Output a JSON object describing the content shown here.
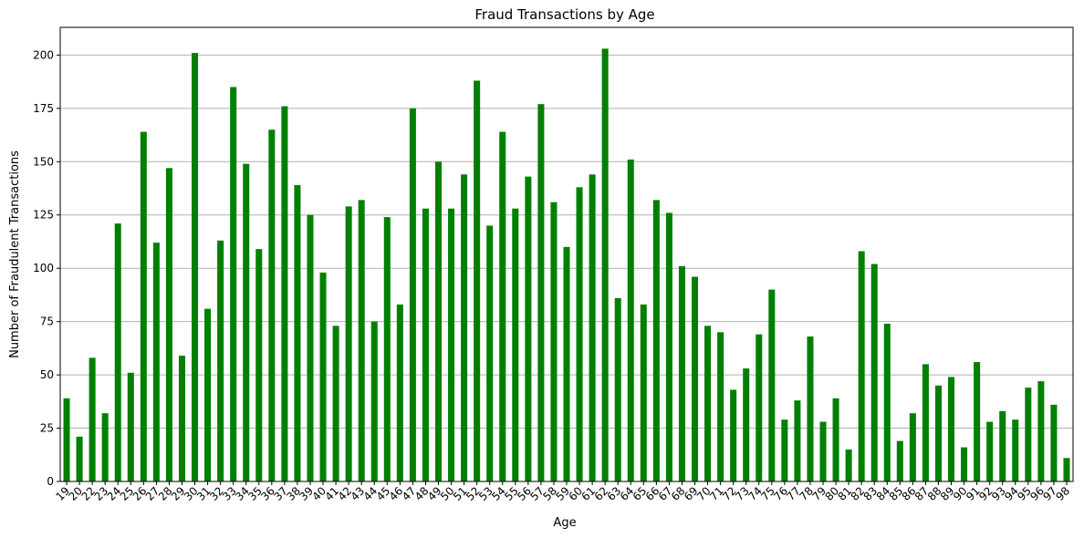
{
  "chart_data": {
    "type": "bar",
    "title": "Fraud Transactions by Age",
    "xlabel": "Age",
    "ylabel": "Number of Fraudulent Transactions",
    "ylim": [
      0,
      213
    ],
    "yticks": [
      0,
      25,
      50,
      75,
      100,
      125,
      150,
      175,
      200
    ],
    "grid": "y",
    "bar_color": "#008000",
    "categories": [
      "19",
      "20",
      "22",
      "23",
      "24",
      "25",
      "26",
      "27",
      "28",
      "29",
      "30",
      "31",
      "32",
      "33",
      "34",
      "35",
      "36",
      "37",
      "38",
      "39",
      "40",
      "41",
      "42",
      "43",
      "44",
      "45",
      "46",
      "47",
      "48",
      "49",
      "50",
      "51",
      "52",
      "53",
      "54",
      "55",
      "56",
      "57",
      "58",
      "59",
      "60",
      "61",
      "62",
      "63",
      "64",
      "65",
      "66",
      "67",
      "68",
      "69",
      "70",
      "71",
      "72",
      "73",
      "74",
      "75",
      "76",
      "77",
      "78",
      "79",
      "80",
      "81",
      "82",
      "83",
      "84",
      "85",
      "86",
      "87",
      "88",
      "89",
      "90",
      "91",
      "92",
      "93",
      "94",
      "95",
      "96",
      "97",
      "98"
    ],
    "values": [
      39,
      21,
      58,
      32,
      121,
      51,
      164,
      112,
      147,
      59,
      201,
      81,
      113,
      185,
      149,
      109,
      165,
      176,
      139,
      125,
      98,
      73,
      129,
      132,
      75,
      124,
      83,
      175,
      128,
      150,
      128,
      144,
      188,
      120,
      164,
      128,
      143,
      177,
      131,
      110,
      138,
      144,
      203,
      86,
      151,
      83,
      132,
      126,
      101,
      96,
      73,
      70,
      43,
      53,
      69,
      90,
      29,
      38,
      68,
      28,
      39,
      15,
      108,
      102,
      74,
      19,
      32,
      55,
      45,
      49,
      16,
      56,
      28,
      33,
      29,
      44,
      47,
      36,
      11
    ]
  }
}
